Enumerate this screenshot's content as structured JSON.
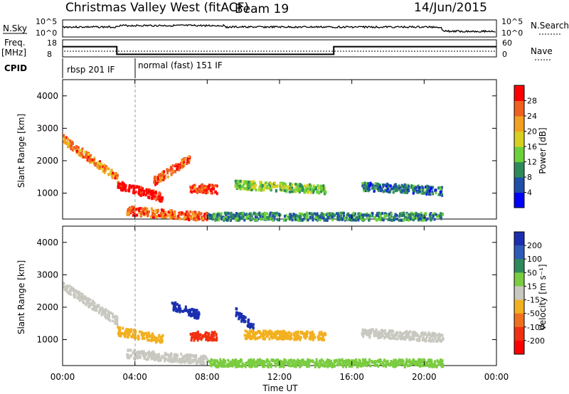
{
  "header": {
    "title": "Christmas Valley West (fitACF)",
    "beam": "Beam 19",
    "date": "14/Jun/2015"
  },
  "status_panel": {
    "nsky_label": "N.Sky",
    "nsearch_label": "N.Search",
    "nsky_ticks": [
      "10^5",
      "10^0"
    ],
    "nsearch_ticks": [
      "10^5",
      "10^0"
    ],
    "freq_label_line1": "Freq.",
    "freq_label_line2": "[MHz]",
    "freq_ticks": [
      "18",
      "8"
    ],
    "nave_label": "Nave",
    "nave_ticks": [
      "60",
      "0"
    ],
    "cpid_label": "CPID",
    "cpid_modes": [
      {
        "label": "rbsp 201 IF",
        "start_hour": 0
      },
      {
        "label": "normal (fast) 151 IF",
        "start_hour": 4
      }
    ],
    "freq_steps": [
      {
        "x": 0,
        "y": 14
      },
      {
        "x": 3.0,
        "y": 14
      },
      {
        "x": 3.0,
        "y": 9.5
      },
      {
        "x": 15.0,
        "y": 9.5
      },
      {
        "x": 15.0,
        "y": 14
      },
      {
        "x": 24,
        "y": 14
      }
    ]
  },
  "x_axis": {
    "label": "Time UT",
    "ticks": [
      "00:00",
      "04:00",
      "08:00",
      "12:00",
      "16:00",
      "20:00",
      "00:00"
    ]
  },
  "chart_data": [
    {
      "type": "heatmap",
      "name": "power",
      "xlabel": "Time UT",
      "ylabel": "Slant Range [km]",
      "xlim": [
        0,
        24
      ],
      "ylim": [
        200,
        4500
      ],
      "y_ticks": [
        "1000",
        "2000",
        "3000",
        "4000"
      ],
      "colorbar": {
        "label": "Power [dB]",
        "ticks": [
          "4",
          "8",
          "12",
          "16",
          "20",
          "24",
          "28"
        ],
        "colors": [
          "#0000ff",
          "#1f4fa8",
          "#2e8a5a",
          "#6bd13a",
          "#d8d020",
          "#f2a020",
          "#f06020",
          "#ff0000"
        ]
      },
      "echo_regions": [
        {
          "t_start": 0.0,
          "t_end": 3.0,
          "r_start": 2700,
          "r_end": 1500,
          "level": 0.75
        },
        {
          "t_start": 3.0,
          "t_end": 5.5,
          "r_start": 1300,
          "r_end": 900,
          "level": 1.0
        },
        {
          "t_start": 5.0,
          "t_end": 7.0,
          "r_start": 1400,
          "r_end": 2100,
          "level": 0.85
        },
        {
          "t_start": 7.0,
          "t_end": 8.5,
          "r_start": 1200,
          "r_end": 1150,
          "level": 0.9
        },
        {
          "t_start": 9.5,
          "t_end": 14.5,
          "r_start": 1300,
          "r_end": 1150,
          "level": 0.45
        },
        {
          "t_start": 16.5,
          "t_end": 21.0,
          "r_start": 1250,
          "r_end": 1100,
          "level": 0.25
        },
        {
          "t_start": 3.5,
          "t_end": 8.0,
          "r_start": 500,
          "r_end": 300,
          "level": 0.8
        },
        {
          "t_start": 8.0,
          "t_end": 21.0,
          "r_start": 300,
          "r_end": 300,
          "level": 0.3
        }
      ]
    },
    {
      "type": "heatmap",
      "name": "velocity",
      "xlabel": "Time UT",
      "ylabel": "Slant Range [km]",
      "xlim": [
        0,
        24
      ],
      "ylim": [
        200,
        4500
      ],
      "y_ticks": [
        "1000",
        "2000",
        "3000",
        "4000"
      ],
      "colorbar": {
        "label": "Velocity [m s⁻¹]",
        "ticks": [
          "200",
          "100",
          "50",
          "15",
          "-15",
          "-50",
          "-100",
          "-200"
        ],
        "colors": [
          "#1a2fb0",
          "#2e5bb8",
          "#2e8a5a",
          "#7acc40",
          "#c8c8c0",
          "#f2b020",
          "#f07020",
          "#f03010",
          "#ff0000"
        ]
      },
      "echo_regions": [
        {
          "t_start": 0.0,
          "t_end": 3.0,
          "r_start": 2700,
          "r_end": 1600,
          "color": "#c8c8c0"
        },
        {
          "t_start": 3.0,
          "t_end": 5.5,
          "r_start": 1300,
          "r_end": 1050,
          "color": "#f2b020"
        },
        {
          "t_start": 6.0,
          "t_end": 7.5,
          "r_start": 2100,
          "r_end": 1800,
          "color": "#1a2fb0"
        },
        {
          "t_start": 7.0,
          "t_end": 8.5,
          "r_start": 1150,
          "r_end": 1150,
          "color": "#f03010"
        },
        {
          "t_start": 9.5,
          "t_end": 10.5,
          "r_start": 1900,
          "r_end": 1400,
          "color": "#1a2fb0"
        },
        {
          "t_start": 10.0,
          "t_end": 14.5,
          "r_start": 1200,
          "r_end": 1150,
          "color": "#f2b020"
        },
        {
          "t_start": 16.5,
          "t_end": 21.0,
          "r_start": 1250,
          "r_end": 1100,
          "color": "#c8c8c0"
        },
        {
          "t_start": 3.5,
          "t_end": 8.0,
          "r_start": 600,
          "r_end": 400,
          "color": "#c8c8c0"
        },
        {
          "t_start": 8.0,
          "t_end": 21.0,
          "r_start": 300,
          "r_end": 300,
          "color": "#7acc40"
        }
      ]
    }
  ]
}
